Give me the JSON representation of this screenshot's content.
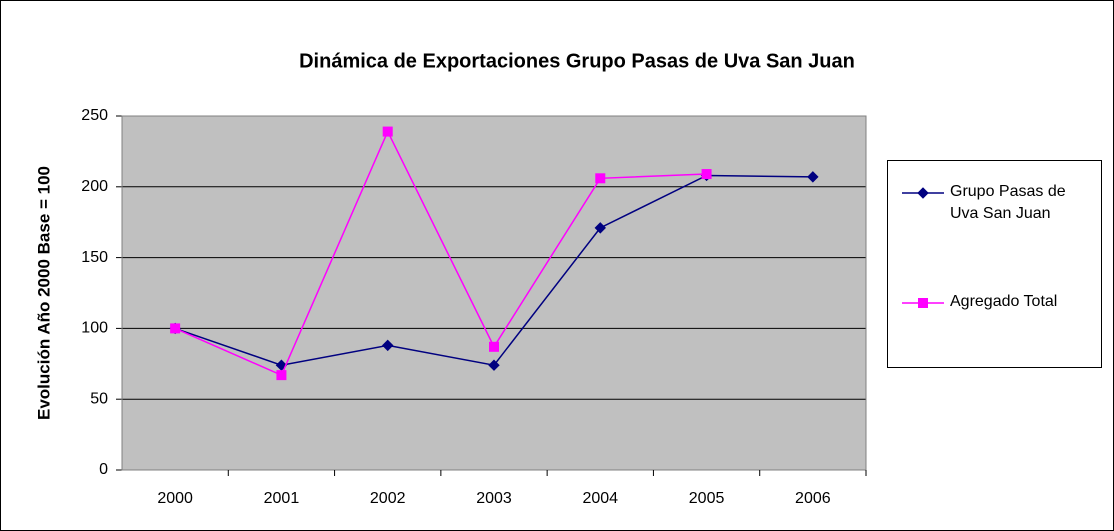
{
  "chart_data": {
    "type": "line",
    "title": "Dinámica de Exportaciones Grupo Pasas de Uva San Juan",
    "y_label": "Evolución  Año 2000 Base = 100",
    "categories": [
      "2000",
      "2001",
      "2002",
      "2003",
      "2004",
      "2005",
      "2006"
    ],
    "series": [
      {
        "name": "Grupo Pasas de Uva San Juan",
        "color": "#000080",
        "marker": "diamond",
        "values": [
          100,
          74,
          88,
          74,
          171,
          208,
          207
        ]
      },
      {
        "name": "Agregado Total",
        "color": "#ff00ff",
        "marker": "square",
        "values": [
          100,
          67,
          239,
          87,
          206,
          209,
          null
        ]
      }
    ],
    "ylim": [
      0,
      250
    ],
    "yticks": [
      0,
      50,
      100,
      150,
      200,
      250
    ],
    "grid": true,
    "legend": "right"
  }
}
